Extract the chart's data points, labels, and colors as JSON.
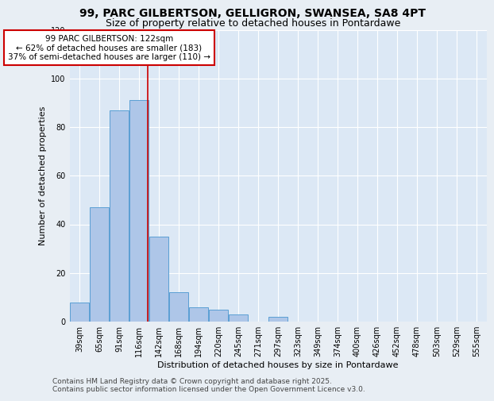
{
  "title1": "99, PARC GILBERTSON, GELLIGRON, SWANSEA, SA8 4PT",
  "title2": "Size of property relative to detached houses in Pontardawe",
  "xlabel": "Distribution of detached houses by size in Pontardawe",
  "ylabel": "Number of detached properties",
  "categories": [
    "39sqm",
    "65sqm",
    "91sqm",
    "116sqm",
    "142sqm",
    "168sqm",
    "194sqm",
    "220sqm",
    "245sqm",
    "271sqm",
    "297sqm",
    "323sqm",
    "349sqm",
    "374sqm",
    "400sqm",
    "426sqm",
    "452sqm",
    "478sqm",
    "503sqm",
    "529sqm",
    "555sqm"
  ],
  "values": [
    8,
    47,
    87,
    91,
    35,
    12,
    6,
    5,
    3,
    0,
    2,
    0,
    0,
    0,
    0,
    0,
    0,
    0,
    0,
    0,
    0
  ],
  "bar_color": "#aec6e8",
  "bar_edge_color": "#5a9fd4",
  "red_line_x": 3.42,
  "annotation_text": "99 PARC GILBERTSON: 122sqm\n← 62% of detached houses are smaller (183)\n37% of semi-detached houses are larger (110) →",
  "annotation_box_color": "#ffffff",
  "annotation_edge_color": "#cc0000",
  "property_line_color": "#cc0000",
  "background_color": "#e8eef4",
  "plot_bg_color": "#dce8f5",
  "footer": "Contains HM Land Registry data © Crown copyright and database right 2025.\nContains public sector information licensed under the Open Government Licence v3.0.",
  "ylim": [
    0,
    120
  ],
  "yticks": [
    0,
    20,
    40,
    60,
    80,
    100,
    120
  ],
  "title_fontsize": 10,
  "subtitle_fontsize": 9,
  "axis_fontsize": 8,
  "tick_fontsize": 7,
  "footer_fontsize": 6.5,
  "ann_fontsize": 7.5
}
